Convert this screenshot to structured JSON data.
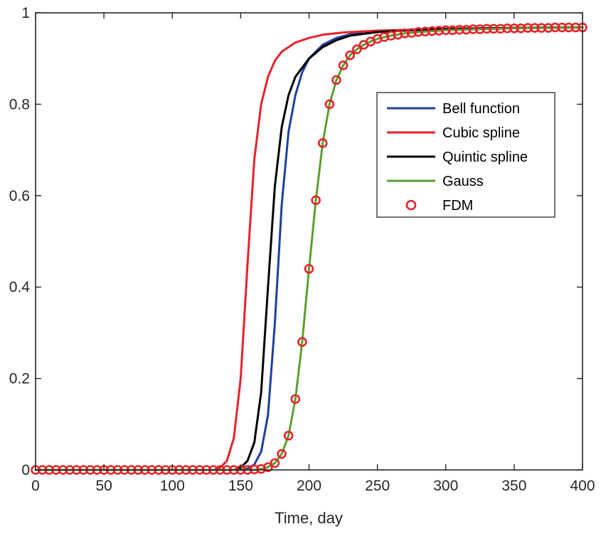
{
  "chart_data": {
    "type": "line",
    "title": "",
    "xlabel": "Time, day",
    "ylabel": "",
    "xlim": [
      0,
      400
    ],
    "ylim": [
      0,
      1
    ],
    "x_ticks": [
      0,
      50,
      100,
      150,
      200,
      250,
      300,
      350,
      400
    ],
    "y_ticks": [
      0,
      0.2,
      0.4,
      0.6,
      0.8,
      1
    ],
    "x_tick_labels": [
      "0",
      "50",
      "100",
      "150",
      "200",
      "250",
      "300",
      "350",
      "400"
    ],
    "y_tick_labels": [
      "0",
      "0.2",
      "0.4",
      "0.6",
      "0.8",
      "1"
    ],
    "grid": false,
    "legend_position": "right-upper",
    "series": [
      {
        "name": "Bell function",
        "color": "#1f3f9f",
        "style": "line",
        "x": [
          0,
          150,
          155,
          160,
          165,
          170,
          175,
          180,
          185,
          190,
          195,
          200,
          210,
          220,
          230,
          250,
          275,
          300,
          350,
          400
        ],
        "y": [
          0,
          0,
          0.003,
          0.012,
          0.04,
          0.12,
          0.32,
          0.58,
          0.74,
          0.82,
          0.87,
          0.9,
          0.93,
          0.945,
          0.953,
          0.96,
          0.963,
          0.965,
          0.967,
          0.968
        ]
      },
      {
        "name": "Cubic spline",
        "color": "#e8222a",
        "style": "line",
        "x": [
          0,
          130,
          135,
          140,
          145,
          150,
          155,
          160,
          165,
          170,
          175,
          180,
          190,
          200,
          210,
          225,
          250,
          300,
          350,
          400
        ],
        "y": [
          0,
          0,
          0.005,
          0.02,
          0.07,
          0.2,
          0.45,
          0.68,
          0.8,
          0.86,
          0.895,
          0.915,
          0.935,
          0.945,
          0.952,
          0.957,
          0.961,
          0.965,
          0.967,
          0.968
        ]
      },
      {
        "name": "Quintic spline",
        "color": "#000000",
        "style": "line",
        "x": [
          0,
          145,
          150,
          155,
          160,
          165,
          170,
          175,
          180,
          185,
          190,
          200,
          210,
          220,
          230,
          250,
          275,
          300,
          350,
          400
        ],
        "y": [
          0,
          0,
          0.005,
          0.02,
          0.06,
          0.17,
          0.4,
          0.62,
          0.75,
          0.82,
          0.86,
          0.9,
          0.925,
          0.94,
          0.95,
          0.958,
          0.962,
          0.965,
          0.967,
          0.968
        ]
      },
      {
        "name": "Gauss",
        "color": "#5aa02c",
        "style": "line",
        "x": [
          0,
          160,
          165,
          170,
          175,
          180,
          185,
          190,
          195,
          200,
          205,
          210,
          215,
          220,
          225,
          230,
          235,
          240,
          245,
          250,
          260,
          270,
          280,
          300,
          320,
          350,
          400
        ],
        "y": [
          0,
          0,
          0.002,
          0.006,
          0.015,
          0.035,
          0.075,
          0.155,
          0.28,
          0.44,
          0.59,
          0.715,
          0.8,
          0.853,
          0.885,
          0.907,
          0.92,
          0.93,
          0.937,
          0.943,
          0.95,
          0.955,
          0.958,
          0.962,
          0.964,
          0.966,
          0.968
        ]
      },
      {
        "name": "FDM",
        "color": "#e8222a",
        "style": "marker",
        "x": [
          0,
          5,
          10,
          15,
          20,
          25,
          30,
          35,
          40,
          45,
          50,
          55,
          60,
          65,
          70,
          75,
          80,
          85,
          90,
          95,
          100,
          105,
          110,
          115,
          120,
          125,
          130,
          135,
          140,
          145,
          150,
          155,
          160,
          165,
          170,
          175,
          180,
          185,
          190,
          195,
          200,
          205,
          210,
          215,
          220,
          225,
          230,
          235,
          240,
          245,
          250,
          255,
          260,
          265,
          270,
          275,
          280,
          285,
          290,
          295,
          300,
          305,
          310,
          315,
          320,
          325,
          330,
          335,
          340,
          345,
          350,
          355,
          360,
          365,
          370,
          375,
          380,
          385,
          390,
          395,
          400
        ],
        "y": [
          0,
          0,
          0,
          0,
          0,
          0,
          0,
          0,
          0,
          0,
          0,
          0,
          0,
          0,
          0,
          0,
          0,
          0,
          0,
          0,
          0,
          0,
          0,
          0,
          0,
          0,
          0,
          0,
          0,
          0,
          0,
          0,
          0.001,
          0.002,
          0.006,
          0.015,
          0.035,
          0.075,
          0.155,
          0.28,
          0.44,
          0.59,
          0.715,
          0.8,
          0.853,
          0.885,
          0.907,
          0.92,
          0.93,
          0.937,
          0.943,
          0.947,
          0.95,
          0.952,
          0.955,
          0.956,
          0.958,
          0.959,
          0.96,
          0.961,
          0.962,
          0.962,
          0.963,
          0.963,
          0.964,
          0.964,
          0.965,
          0.965,
          0.965,
          0.966,
          0.966,
          0.966,
          0.967,
          0.967,
          0.967,
          0.967,
          0.968,
          0.968,
          0.968,
          0.968,
          0.968
        ]
      }
    ]
  }
}
